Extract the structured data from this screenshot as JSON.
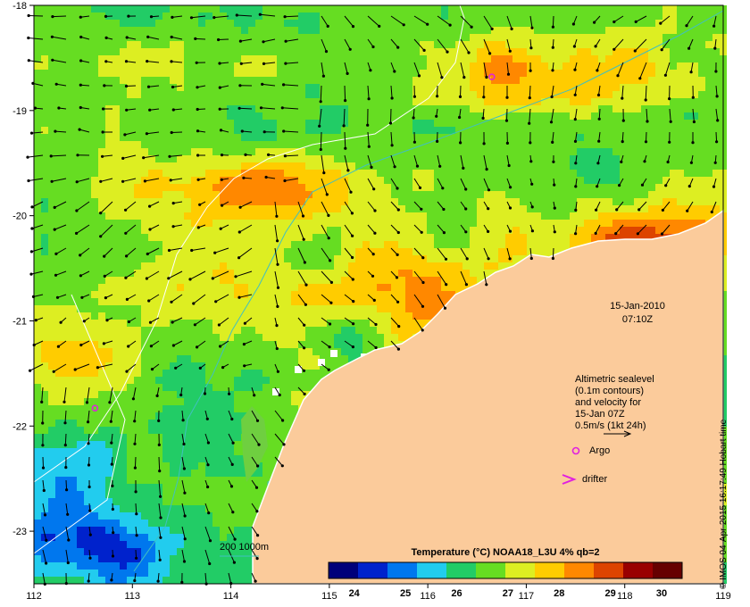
{
  "axes": {
    "lon_min": 112,
    "lon_max": 119,
    "lat_min": -23.5,
    "lat_max": -18,
    "x_ticks": [
      "112",
      "113",
      "114",
      "115",
      "116",
      "117",
      "118",
      "119"
    ],
    "y_ticks": [
      "-18",
      "-19",
      "-20",
      "-21",
      "-22",
      "-23"
    ]
  },
  "timestamp": {
    "date": "15-Jan-2010",
    "time": "07:10Z"
  },
  "legend": {
    "lines": [
      "Altimetric sealevel",
      "(0.1m contours)",
      "and velocity for",
      "15-Jan 07Z"
    ],
    "scale_text": "0.5m/s (1kt 24h)",
    "argo_label": "Argo",
    "drifter_label": "drifter",
    "depth_label": "200  1000m"
  },
  "colorbar": {
    "title": "Temperature (°C) NOAA18_L3U 4% qb=2",
    "ticks": [
      "24",
      "25",
      "26",
      "27",
      "28",
      "29",
      "30"
    ],
    "colors": [
      "#00007a",
      "#0022cc",
      "#0077ee",
      "#22ccee",
      "#22cc66",
      "#66dd22",
      "#ddee22",
      "#ffcc00",
      "#ff8800",
      "#dd4400",
      "#990000",
      "#660000"
    ]
  },
  "side_text": "© IMOS 04-Apr-2015 16:17:49 Hobart time",
  "colors": {
    "land": "#fbcb9b",
    "argo": "#e020e0",
    "drifter": "#e020e0",
    "bathy_200": "#40c0c0",
    "bathy_1000": "#ffffff"
  },
  "argo_floats": [
    {
      "lon": 116.65,
      "lat": -18.68
    },
    {
      "lon": 112.62,
      "lat": -21.83
    }
  ]
}
